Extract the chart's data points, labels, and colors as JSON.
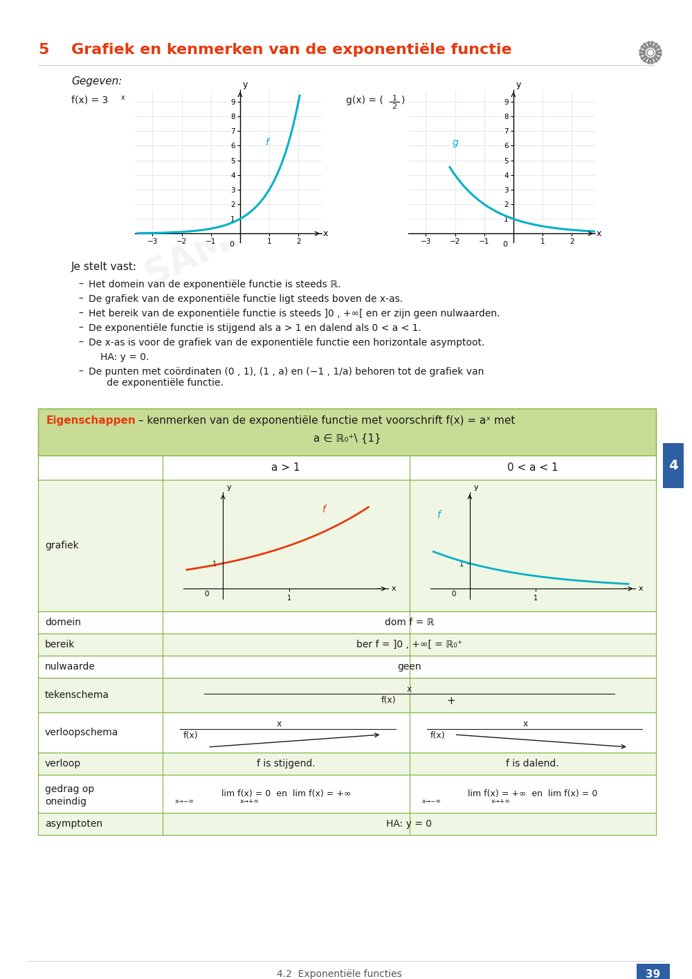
{
  "title_number": "5",
  "title_text": "Grafiek en kenmerken van de exponentiële functie",
  "given_label": "Gegeven:",
  "page_bg": "#ffffff",
  "cyan_color": "#00b0c8",
  "red_color": "#e8380c",
  "dark_text": "#1a1a1a",
  "tab_blue": "#2e5fa3",
  "green_header_bg": "#c8dc96",
  "green_border": "#7ab53c",
  "row_alt": "#f0f6e4",
  "page_number": "39",
  "footer_text": "4.2  Exponentiële functies"
}
